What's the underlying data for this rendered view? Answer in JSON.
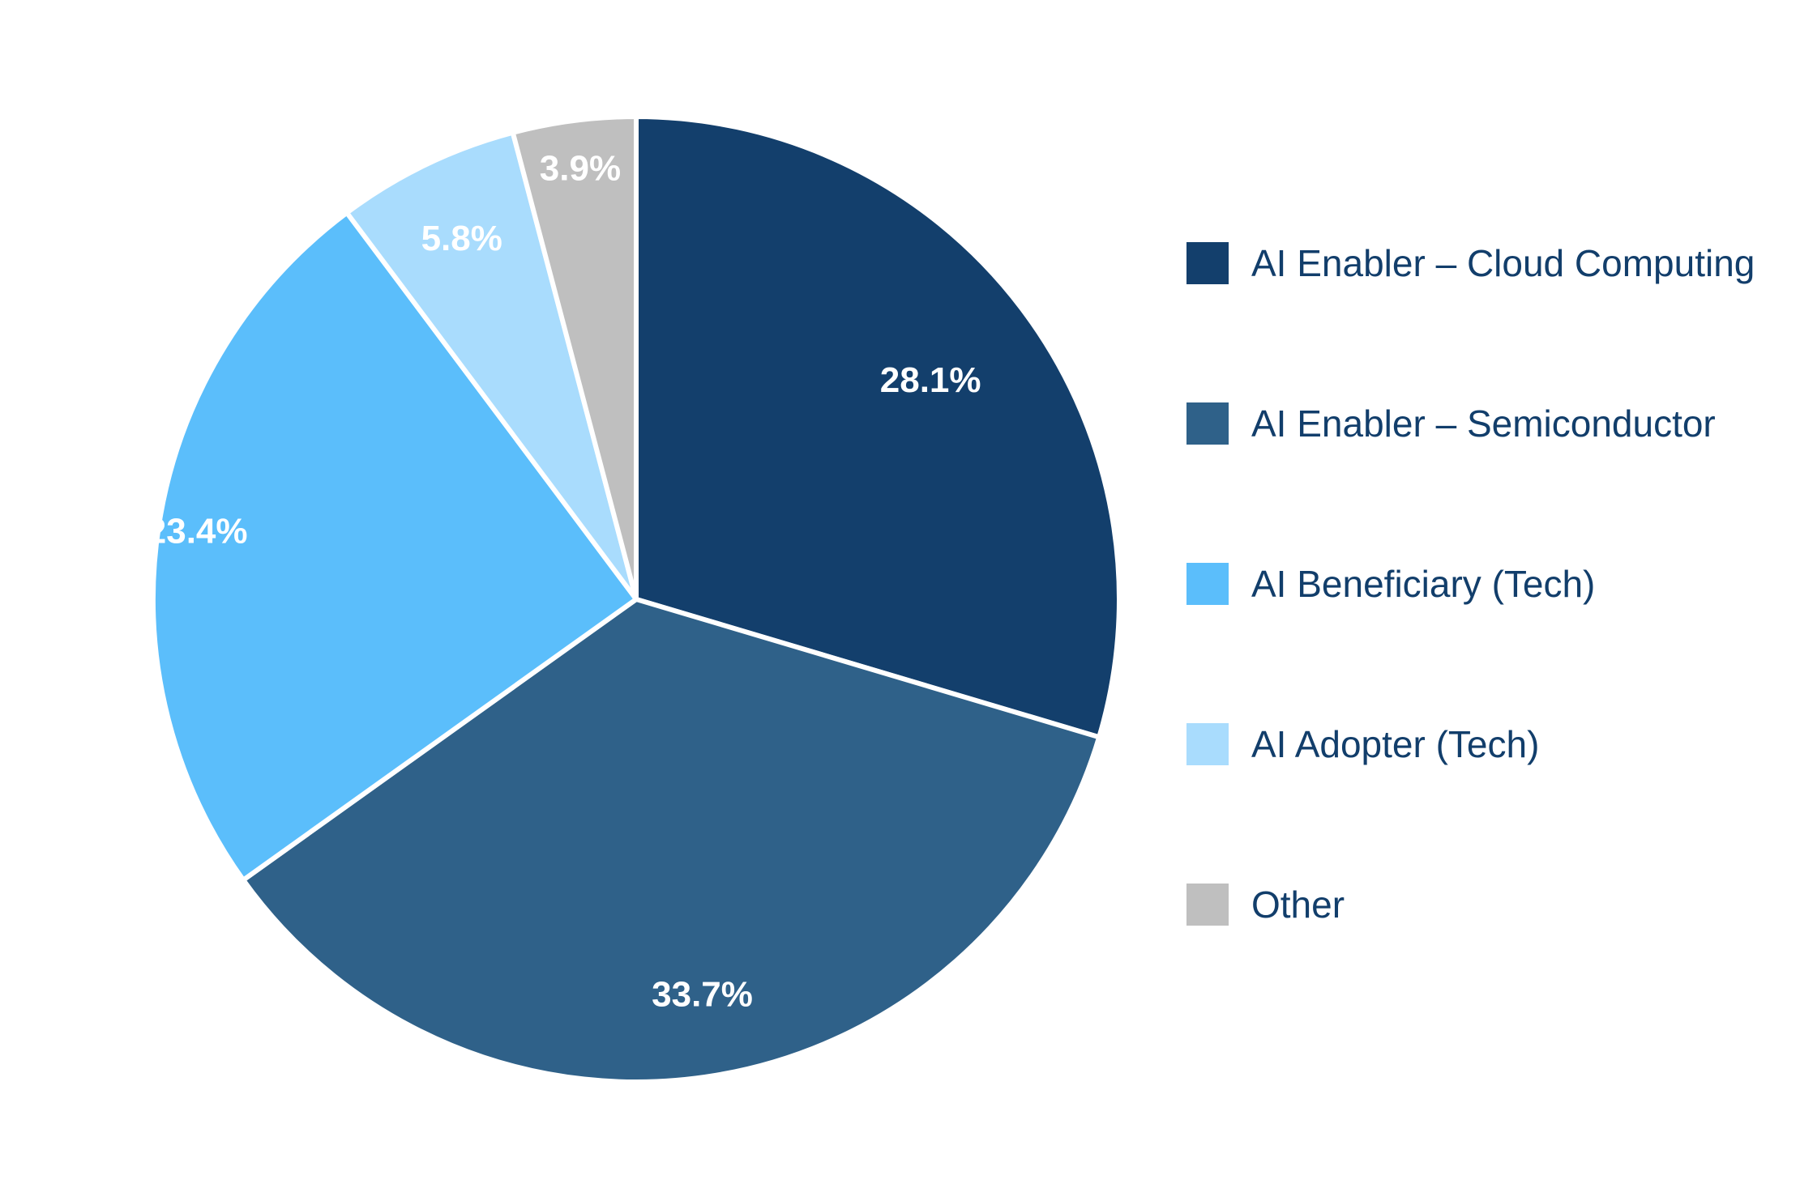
{
  "chart_data": {
    "type": "pie",
    "categories": [
      "AI Enabler – Cloud Computing",
      "AI Enabler – Semiconductor",
      "AI Beneficiary (Tech)",
      "AI Adopter (Tech)",
      "Other"
    ],
    "values": [
      28.1,
      33.7,
      23.4,
      5.8,
      3.9
    ],
    "data_labels": [
      "28.1%",
      "33.7%",
      "23.4%",
      "5.8%",
      "3.9%"
    ],
    "colors": [
      "#133f6c",
      "#2f6189",
      "#5bbefb",
      "#a9dcfd",
      "#bfbfbf"
    ],
    "start_angle": "12 o'clock",
    "direction": "clockwise",
    "legend_placement": "right",
    "title": ""
  }
}
